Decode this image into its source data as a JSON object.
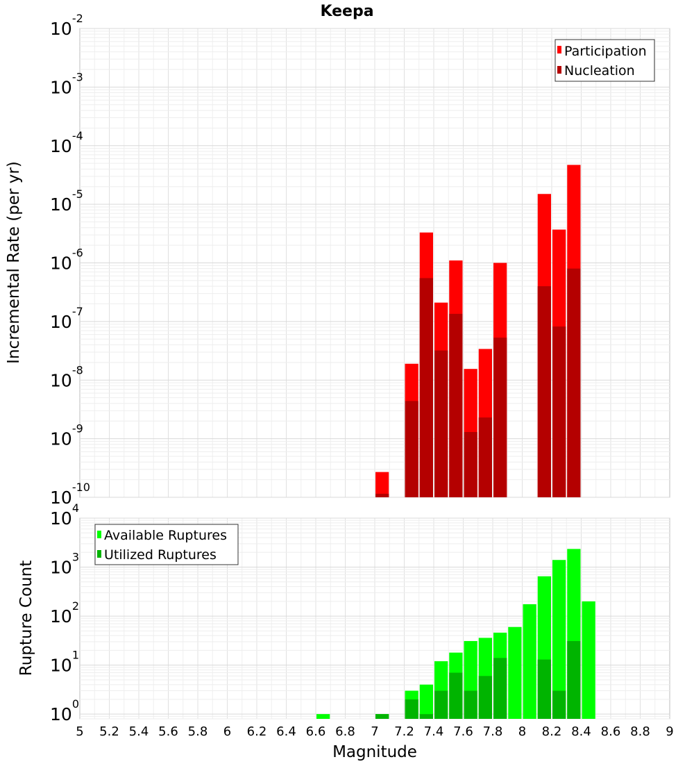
{
  "chart_data": [
    {
      "type": "bar",
      "title": "Keepa",
      "xlabel": "Magnitude",
      "ylabel": "Incremental Rate (per yr)",
      "yscale": "log",
      "ylim": [
        1e-10,
        0.01
      ],
      "xlim": [
        5,
        9
      ],
      "bar_width": 0.1,
      "grid": true,
      "legend_position": "top-right",
      "y_ticks": [
        {
          "base": "10",
          "exp": "-10",
          "value": 1e-10
        },
        {
          "base": "10",
          "exp": "-9",
          "value": 1e-09
        },
        {
          "base": "10",
          "exp": "-8",
          "value": 1e-08
        },
        {
          "base": "10",
          "exp": "-7",
          "value": 1e-07
        },
        {
          "base": "10",
          "exp": "-6",
          "value": 1e-06
        },
        {
          "base": "10",
          "exp": "-5",
          "value": 1e-05
        },
        {
          "base": "10",
          "exp": "-4",
          "value": 0.0001
        },
        {
          "base": "10",
          "exp": "-3",
          "value": 0.001
        },
        {
          "base": "10",
          "exp": "-2",
          "value": 0.01
        }
      ],
      "series": [
        {
          "name": "Participation",
          "color": "#ff0000",
          "points": [
            {
              "x": 7.05,
              "y": 2.7e-10
            },
            {
              "x": 7.25,
              "y": 1.9e-08
            },
            {
              "x": 7.35,
              "y": 3.3e-06
            },
            {
              "x": 7.45,
              "y": 2.1e-07
            },
            {
              "x": 7.55,
              "y": 1.1e-06
            },
            {
              "x": 7.65,
              "y": 1.55e-08
            },
            {
              "x": 7.75,
              "y": 3.4e-08
            },
            {
              "x": 7.85,
              "y": 1e-06
            },
            {
              "x": 8.15,
              "y": 1.5e-05
            },
            {
              "x": 8.25,
              "y": 3.7e-06
            },
            {
              "x": 8.35,
              "y": 4.7e-05
            }
          ]
        },
        {
          "name": "Nucleation",
          "color": "#b40000",
          "points": [
            {
              "x": 7.05,
              "y": 1.15e-10
            },
            {
              "x": 7.25,
              "y": 4.4e-09
            },
            {
              "x": 7.35,
              "y": 5.5e-07
            },
            {
              "x": 7.45,
              "y": 3.2e-08
            },
            {
              "x": 7.55,
              "y": 1.35e-07
            },
            {
              "x": 7.65,
              "y": 1.3e-09
            },
            {
              "x": 7.75,
              "y": 2.3e-09
            },
            {
              "x": 7.85,
              "y": 5.3e-08
            },
            {
              "x": 8.15,
              "y": 4e-07
            },
            {
              "x": 8.25,
              "y": 8.2e-08
            },
            {
              "x": 8.35,
              "y": 8e-07
            }
          ]
        }
      ]
    },
    {
      "type": "bar",
      "title": "",
      "xlabel": "Magnitude",
      "ylabel": "Rupture Count",
      "yscale": "log",
      "ylim": [
        0.8,
        10000.0
      ],
      "xlim": [
        5,
        9
      ],
      "bar_width": 0.1,
      "grid": true,
      "legend_position": "top-left",
      "x_ticks": [
        "5",
        "5.2",
        "5.4",
        "5.6",
        "5.8",
        "6",
        "6.2",
        "6.4",
        "6.6",
        "6.8",
        "7",
        "7.2",
        "7.4",
        "7.6",
        "7.8",
        "8",
        "8.2",
        "8.4",
        "8.6",
        "8.8",
        "9"
      ],
      "y_ticks": [
        {
          "base": "10",
          "exp": "0",
          "value": 1
        },
        {
          "base": "10",
          "exp": "1",
          "value": 10
        },
        {
          "base": "10",
          "exp": "2",
          "value": 100
        },
        {
          "base": "10",
          "exp": "3",
          "value": 1000
        },
        {
          "base": "10",
          "exp": "4",
          "value": 10000
        }
      ],
      "series": [
        {
          "name": "Available Ruptures",
          "color": "#00ff00",
          "points": [
            {
              "x": 6.65,
              "y": 1
            },
            {
              "x": 7.05,
              "y": 1
            },
            {
              "x": 7.25,
              "y": 3
            },
            {
              "x": 7.35,
              "y": 4
            },
            {
              "x": 7.45,
              "y": 12
            },
            {
              "x": 7.55,
              "y": 18
            },
            {
              "x": 7.65,
              "y": 31
            },
            {
              "x": 7.75,
              "y": 36
            },
            {
              "x": 7.85,
              "y": 46
            },
            {
              "x": 7.95,
              "y": 60
            },
            {
              "x": 8.05,
              "y": 175
            },
            {
              "x": 8.15,
              "y": 650
            },
            {
              "x": 8.25,
              "y": 1400
            },
            {
              "x": 8.35,
              "y": 2350
            },
            {
              "x": 8.45,
              "y": 200
            }
          ]
        },
        {
          "name": "Utilized Ruptures",
          "color": "#00b400",
          "points": [
            {
              "x": 7.05,
              "y": 1
            },
            {
              "x": 7.25,
              "y": 2
            },
            {
              "x": 7.35,
              "y": 1
            },
            {
              "x": 7.45,
              "y": 3
            },
            {
              "x": 7.55,
              "y": 7
            },
            {
              "x": 7.65,
              "y": 3
            },
            {
              "x": 7.75,
              "y": 6
            },
            {
              "x": 7.85,
              "y": 14
            },
            {
              "x": 8.15,
              "y": 13
            },
            {
              "x": 8.25,
              "y": 3
            },
            {
              "x": 8.35,
              "y": 31
            }
          ]
        }
      ]
    }
  ]
}
